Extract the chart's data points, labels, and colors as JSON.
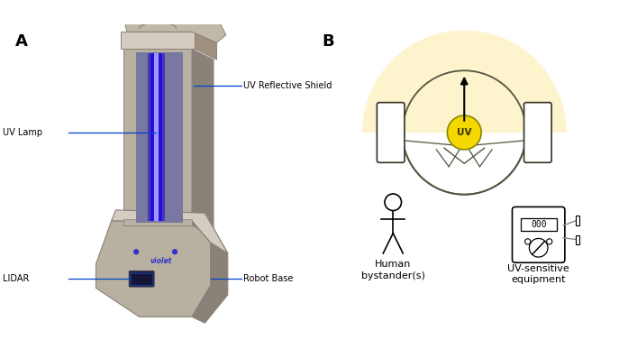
{
  "panel_A_label": "A",
  "panel_B_label": "B",
  "annotation_uv_shield": "UV Reflective Shield",
  "annotation_uv_lamp": "UV Lamp",
  "annotation_lidar": "LIDAR",
  "annotation_robot_base": "Robot Base",
  "annotation_uv": "UV",
  "annotation_human": "Human\nbystander(s)",
  "annotation_equipment": "UV-sensitive\nequipment",
  "robot_body_color": "#b8b0a0",
  "robot_body_shadow": "#8a8278",
  "robot_body_light": "#d4ccc0",
  "lamp_color": "#2222ee",
  "uv_circle_color": "#f5d800",
  "semicircle_color": "#fdf3cc",
  "annotation_line_color": "#0044cc",
  "outline_color": "#555540",
  "violet_text_color": "#3333cc",
  "background": "#ffffff"
}
